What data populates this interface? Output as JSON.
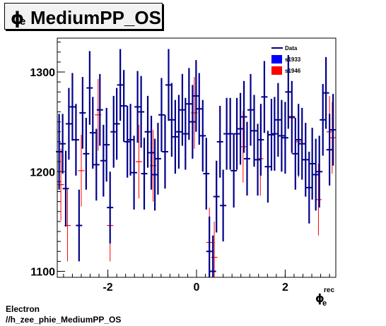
{
  "title": {
    "symbol": "ϕ",
    "subscript": "e",
    "text": "MediumPP_OS"
  },
  "footer": {
    "line1": "Electron",
    "line2": "//h_zee_phie_MediumPP_OS"
  },
  "chart_data": {
    "type": "scatter",
    "xlabel": {
      "symbol": "ϕ",
      "subscript": "e",
      "superscript": "rec"
    },
    "ylabel": "",
    "xlim": [
      -3.14159,
      3.14159
    ],
    "ylim": [
      1094,
      1334
    ],
    "x_ticks": [
      -2,
      0,
      2
    ],
    "y_ticks": [
      1100,
      1200,
      1300
    ],
    "grid": false,
    "legend": {
      "position": "top-right",
      "entries": [
        {
          "name": "Data",
          "color": "#00008b",
          "style": "line"
        },
        {
          "name": "s1933",
          "color": "#0000ff",
          "style": "box"
        },
        {
          "name": "s1946",
          "color": "#ff0000",
          "style": "box"
        }
      ]
    },
    "series": [
      {
        "name": "Data",
        "color": "#00008b",
        "points": [
          [
            -3.1,
            1220,
            38
          ],
          [
            -3.02,
            1228,
            30
          ],
          [
            -2.95,
            1183,
            38
          ],
          [
            -2.88,
            1248,
            36
          ],
          [
            -2.8,
            1265,
            34
          ],
          [
            -2.72,
            1232,
            36
          ],
          [
            -2.65,
            1146,
            36
          ],
          [
            -2.57,
            1259,
            36
          ],
          [
            -2.49,
            1218,
            36
          ],
          [
            -2.41,
            1284,
            37
          ],
          [
            -2.34,
            1239,
            36
          ],
          [
            -2.26,
            1207,
            36
          ],
          [
            -2.18,
            1262,
            36
          ],
          [
            -2.1,
            1211,
            36
          ],
          [
            -2.03,
            1227,
            37
          ],
          [
            -1.95,
            1164,
            36
          ],
          [
            -1.87,
            1240,
            36
          ],
          [
            -1.8,
            1248,
            36
          ],
          [
            -1.72,
            1287,
            36
          ],
          [
            -1.64,
            1266,
            36
          ],
          [
            -1.56,
            1230,
            36
          ],
          [
            -1.49,
            1232,
            36
          ],
          [
            -1.41,
            1199,
            37
          ],
          [
            -1.33,
            1265,
            36
          ],
          [
            -1.25,
            1260,
            36
          ],
          [
            -1.18,
            1198,
            36
          ],
          [
            -1.1,
            1240,
            36
          ],
          [
            -1.02,
            1219,
            37
          ],
          [
            -0.94,
            1197,
            36
          ],
          [
            -0.87,
            1213,
            36
          ],
          [
            -0.79,
            1257,
            37
          ],
          [
            -0.71,
            1220,
            37
          ],
          [
            -0.63,
            1287,
            36
          ],
          [
            -0.56,
            1252,
            37
          ],
          [
            -0.48,
            1235,
            37
          ],
          [
            -0.4,
            1240,
            37
          ],
          [
            -0.32,
            1262,
            36
          ],
          [
            -0.25,
            1238,
            36
          ],
          [
            -0.17,
            1268,
            36
          ],
          [
            -0.09,
            1250,
            37
          ],
          [
            -0.01,
            1276,
            36
          ],
          [
            0.06,
            1263,
            36
          ],
          [
            0.14,
            1236,
            36
          ],
          [
            0.22,
            1198,
            36
          ],
          [
            0.29,
            1120,
            35
          ],
          [
            0.37,
            1100,
            36
          ],
          [
            0.45,
            1175,
            36
          ],
          [
            0.53,
            1230,
            36
          ],
          [
            0.6,
            1166,
            36
          ],
          [
            0.68,
            1238,
            36
          ],
          [
            0.76,
            1238,
            36
          ],
          [
            0.84,
            1201,
            37
          ],
          [
            0.91,
            1238,
            36
          ],
          [
            0.99,
            1243,
            36
          ],
          [
            1.07,
            1255,
            36
          ],
          [
            1.14,
            1213,
            37
          ],
          [
            1.22,
            1262,
            36
          ],
          [
            1.3,
            1241,
            36
          ],
          [
            1.38,
            1212,
            36
          ],
          [
            1.45,
            1232,
            36
          ],
          [
            1.53,
            1275,
            36
          ],
          [
            1.61,
            1205,
            36
          ],
          [
            1.69,
            1237,
            36
          ],
          [
            1.76,
            1238,
            37
          ],
          [
            1.84,
            1252,
            37
          ],
          [
            1.92,
            1236,
            36
          ],
          [
            2.0,
            1234,
            36
          ],
          [
            2.07,
            1280,
            37
          ],
          [
            2.15,
            1255,
            36
          ],
          [
            2.23,
            1218,
            36
          ],
          [
            2.3,
            1232,
            36
          ],
          [
            2.38,
            1228,
            36
          ],
          [
            2.46,
            1212,
            37
          ],
          [
            2.54,
            1184,
            36
          ],
          [
            2.61,
            1208,
            36
          ],
          [
            2.69,
            1197,
            36
          ],
          [
            2.77,
            1200,
            36
          ],
          [
            2.85,
            1252,
            36
          ],
          [
            2.92,
            1279,
            36
          ],
          [
            3.0,
            1222,
            36
          ],
          [
            3.08,
            1242,
            36
          ]
        ]
      },
      {
        "name": "s1946",
        "color": "#ff0000",
        "points": [
          [
            -3.06,
            1187,
            36
          ],
          [
            -2.91,
            1146,
            36
          ],
          [
            -2.6,
            1201,
            36
          ],
          [
            -2.22,
            1257,
            36
          ],
          [
            -1.95,
            1146,
            36
          ],
          [
            -1.3,
            1210,
            37
          ],
          [
            -0.98,
            1206,
            36
          ],
          [
            -0.05,
            1259,
            36
          ],
          [
            0.29,
            1129,
            35
          ],
          [
            0.4,
            1114,
            36
          ],
          [
            1.05,
            1225,
            36
          ],
          [
            1.44,
            1213,
            37
          ],
          [
            2.15,
            1254,
            36
          ],
          [
            2.3,
            1230,
            36
          ],
          [
            2.75,
            1172,
            36
          ],
          [
            3.0,
            1240,
            36
          ],
          [
            3.06,
            1234,
            36
          ]
        ]
      }
    ]
  }
}
